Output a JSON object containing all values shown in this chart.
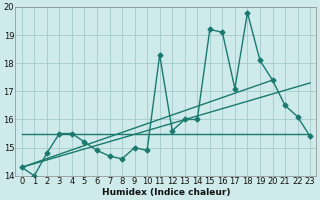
{
  "xlabel": "Humidex (Indice chaleur)",
  "background_color": "#ceeaea",
  "grid_color": "#aacece",
  "line_color": "#1a7a6e",
  "xlim": [
    -0.5,
    23.5
  ],
  "ylim": [
    14,
    20
  ],
  "yticks": [
    14,
    15,
    16,
    17,
    18,
    19,
    20
  ],
  "xticks": [
    0,
    1,
    2,
    3,
    4,
    5,
    6,
    7,
    8,
    9,
    10,
    11,
    12,
    13,
    14,
    15,
    16,
    17,
    18,
    19,
    20,
    21,
    22,
    23
  ],
  "x": [
    0,
    1,
    2,
    3,
    4,
    5,
    6,
    7,
    8,
    9,
    10,
    11,
    12,
    13,
    14,
    15,
    16,
    17,
    18,
    19,
    20,
    21,
    22,
    23
  ],
  "y_main": [
    14.3,
    14.0,
    14.8,
    15.5,
    15.5,
    15.2,
    14.9,
    14.7,
    14.6,
    15.0,
    14.9,
    18.3,
    15.6,
    16.0,
    16.0,
    19.2,
    19.1,
    17.1,
    19.8,
    18.1,
    17.4,
    16.5,
    16.1,
    15.4
  ],
  "trend1_x": [
    0,
    23
  ],
  "trend1_y": [
    15.5,
    15.5
  ],
  "trend2_x": [
    0,
    23
  ],
  "trend2_y": [
    14.3,
    17.3
  ],
  "trend3_x": [
    0,
    20
  ],
  "trend3_y": [
    14.3,
    17.4
  ],
  "marker_size": 2.5,
  "line_width": 1.0
}
